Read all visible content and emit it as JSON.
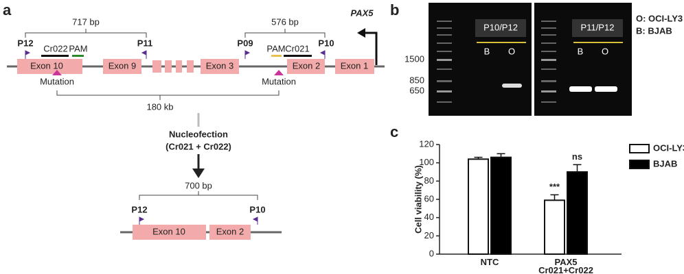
{
  "panel_a": {
    "label": "a",
    "brackets": [
      "717 bp",
      "576 bp"
    ],
    "gene": "PAX5",
    "primers": [
      "P12",
      "P11",
      "P09",
      "P10"
    ],
    "guides": [
      "Cr022",
      "PAM",
      "PAM",
      "Cr021"
    ],
    "exons": [
      "Exon 10",
      "Exon 9",
      "Exon 3",
      "Exon 2",
      "Exon 1"
    ],
    "mutations": [
      "Mutation",
      "Mutation"
    ],
    "span": "180 kb",
    "step": [
      "Nucleofection",
      "(Cr021 + Cr022)"
    ],
    "result": {
      "size": "700 bp",
      "primers": [
        "P12",
        "P10"
      ],
      "exons": [
        "Exon 10",
        "Exon 2"
      ]
    }
  },
  "panel_b": {
    "label": "b",
    "ladder": [
      "1500",
      "850",
      "650"
    ],
    "lanes": [
      {
        "primers": "P10/P12",
        "samples": [
          "B",
          "O"
        ]
      },
      {
        "primers": "P11/P12",
        "samples": [
          "B",
          "O"
        ]
      }
    ],
    "key": [
      "O: OCI-LY3",
      "B: BJAB"
    ]
  },
  "panel_c": {
    "label": "c"
  },
  "chart_data": {
    "type": "bar",
    "ylabel": "Cell viability (%)",
    "categories": [
      "NTC",
      "PAX5\nCr021+Cr022"
    ],
    "series": [
      {
        "name": "OCI-LY3",
        "color": "#ffffff",
        "values": [
          104,
          59
        ],
        "errors": [
          2,
          6
        ],
        "annotations": [
          null,
          "***"
        ]
      },
      {
        "name": "BJAB",
        "color": "#000000",
        "values": [
          106,
          90
        ],
        "errors": [
          4,
          8
        ],
        "annotations": [
          null,
          "ns"
        ]
      }
    ],
    "ylim": [
      0,
      120
    ],
    "yticks": [
      0,
      20,
      40,
      60,
      80,
      100,
      120
    ]
  }
}
